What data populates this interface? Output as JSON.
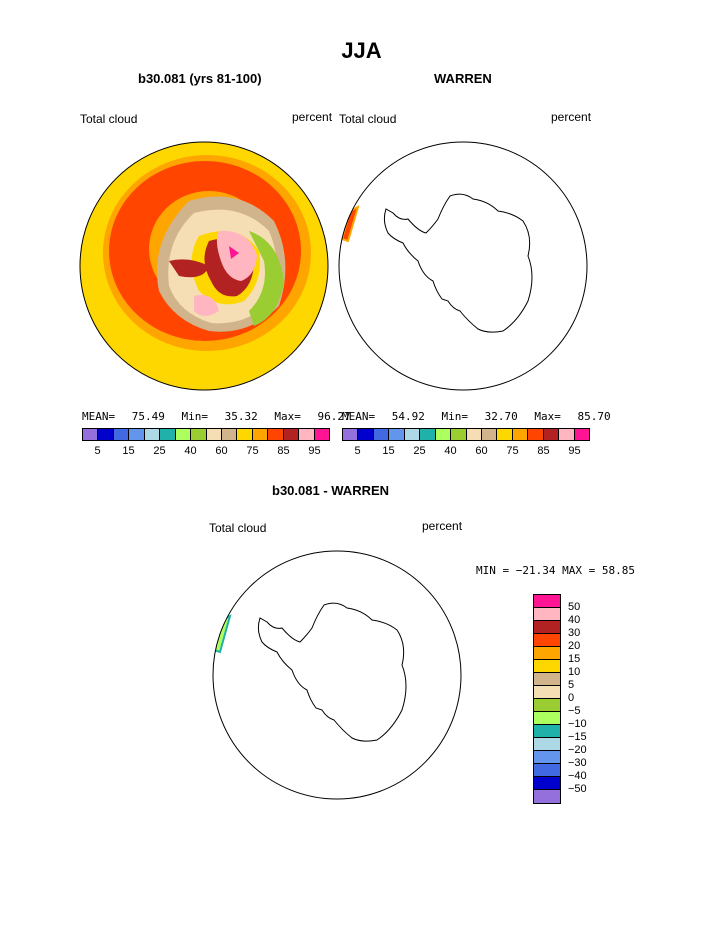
{
  "main_title": "JJA",
  "panels": {
    "left": {
      "title": "b30.081 (yrs 81-100)",
      "variable": "Total cloud",
      "units": "percent",
      "mean_label": "MEAN=",
      "mean": "75.49",
      "min_label": "Min=",
      "min": "35.32",
      "max_label": "Max=",
      "max": "96.27"
    },
    "right": {
      "title": "WARREN",
      "variable": "Total cloud",
      "units": "percent",
      "mean_label": "MEAN=",
      "mean": "54.92",
      "min_label": "Min=",
      "min": "32.70",
      "max_label": "Max=",
      "max": "85.70"
    },
    "diff": {
      "title": "b30.081 - WARREN",
      "variable": "Total cloud",
      "units": "percent",
      "minmax": "MIN = −21.34 MAX =  58.85"
    }
  },
  "colorbar_top": {
    "colors": [
      "#9370DB",
      "#0000CD",
      "#4169E1",
      "#6495ED",
      "#ADD8E6",
      "#20B2AA",
      "#ADFF5F",
      "#9ACD32",
      "#F5DEB3",
      "#D2B48C",
      "#FFD700",
      "#FFA500",
      "#FF4500",
      "#B22222",
      "#FFB6C1",
      "#FF1493"
    ],
    "tick_labels": [
      "5",
      "15",
      "25",
      "40",
      "60",
      "75",
      "85",
      "95"
    ]
  },
  "colorbar_diff": {
    "colors_top_to_bottom": [
      "#FF1493",
      "#FFB6C1",
      "#B22222",
      "#FF4500",
      "#FFA500",
      "#FFD700",
      "#D2B48C",
      "#F5DEB3",
      "#9ACD32",
      "#ADFF5F",
      "#20B2AA",
      "#ADD8E6",
      "#6495ED",
      "#4169E1",
      "#0000CD",
      "#9370DB"
    ],
    "labels_top_to_bottom": [
      "50",
      "40",
      "30",
      "20",
      "15",
      "10",
      "5",
      "0",
      "−5",
      "−10",
      "−15",
      "−20",
      "−30",
      "−40",
      "−50"
    ]
  }
}
